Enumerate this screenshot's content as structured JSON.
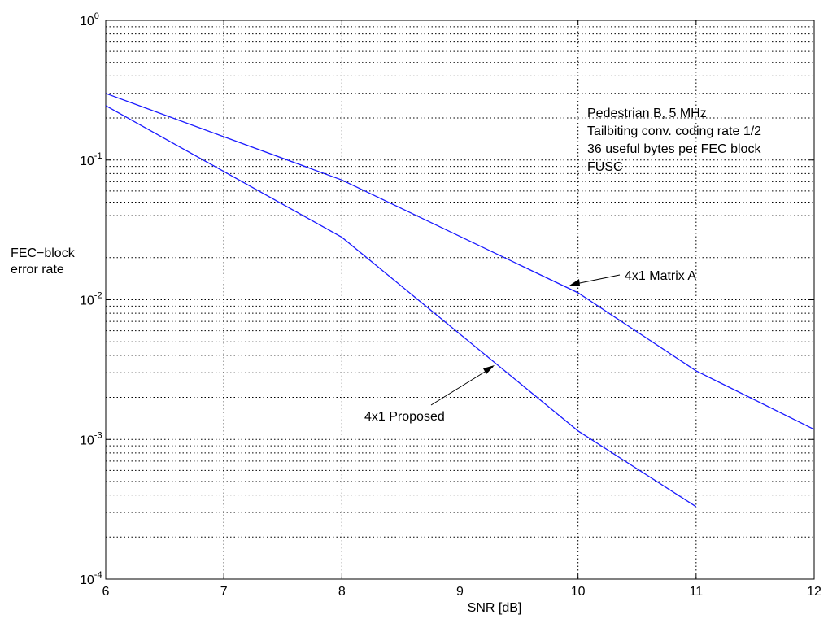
{
  "chart_data": {
    "type": "line",
    "xlabel": "SNR [dB]",
    "ylabel_lines": [
      "FEC−block",
      "error rate"
    ],
    "xlim": [
      6,
      12
    ],
    "ylim": [
      0.0001,
      1
    ],
    "yscale": "log",
    "grid": true,
    "x_ticks": [
      6,
      7,
      8,
      9,
      10,
      11,
      12
    ],
    "y_ticks": [
      {
        "base": "10",
        "exp": "-4",
        "value": 0.0001
      },
      {
        "base": "10",
        "exp": "-3",
        "value": 0.001
      },
      {
        "base": "10",
        "exp": "-2",
        "value": 0.01
      },
      {
        "base": "10",
        "exp": "-1",
        "value": 0.1
      },
      {
        "base": "10",
        "exp": "0",
        "value": 1
      }
    ],
    "series": [
      {
        "id": "matrix-a",
        "color": "#1a1aff",
        "x": [
          6,
          8,
          10,
          11,
          12
        ],
        "y": [
          0.3,
          0.072,
          0.0112,
          0.0031,
          0.00118
        ]
      },
      {
        "id": "proposed",
        "color": "#1a1aff",
        "x": [
          6,
          8,
          10,
          11
        ],
        "y": [
          0.245,
          0.028,
          0.00115,
          0.00033
        ]
      }
    ],
    "info_box": [
      "Pedestrian B, 5 MHz",
      "Tailbiting conv. coding rate 1/2",
      "36 useful bytes per FEC block",
      "FUSC"
    ],
    "annotations": [
      {
        "series": "matrix-a",
        "text": "4x1 Matrix A",
        "point": [
          10,
          0.0112
        ]
      },
      {
        "series": "proposed",
        "text": "4x1 Proposed",
        "point": [
          9.3,
          0.0035
        ]
      }
    ]
  }
}
